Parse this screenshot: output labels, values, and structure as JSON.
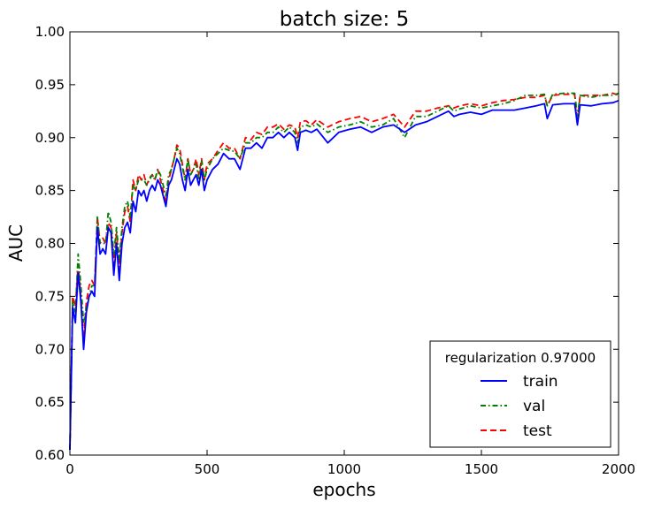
{
  "chart_data": {
    "type": "line",
    "title": "batch size: 5",
    "xlabel": "epochs",
    "ylabel": "AUC",
    "xlim": [
      0,
      2000
    ],
    "ylim": [
      0.6,
      1.0
    ],
    "xticks": [
      0,
      500,
      1000,
      1500,
      2000
    ],
    "xtick_labels": [
      "0",
      "500",
      "1000",
      "1500",
      "2000"
    ],
    "yticks": [
      0.6,
      0.65,
      0.7,
      0.75,
      0.8,
      0.85,
      0.9,
      0.95,
      1.0
    ],
    "ytick_labels": [
      "0.60",
      "0.65",
      "0.70",
      "0.75",
      "0.80",
      "0.85",
      "0.90",
      "0.95",
      "1.00"
    ],
    "grid": false,
    "legend": {
      "title": "regularization 0.97000",
      "position": "lower-right"
    },
    "series": [
      {
        "name": "train",
        "color": "#0000ff",
        "style": "solid",
        "x": [
          0,
          10,
          20,
          30,
          40,
          50,
          60,
          70,
          80,
          90,
          100,
          110,
          120,
          130,
          140,
          150,
          160,
          170,
          180,
          190,
          200,
          210,
          220,
          230,
          240,
          250,
          260,
          270,
          280,
          290,
          300,
          310,
          320,
          330,
          340,
          350,
          360,
          370,
          380,
          390,
          400,
          410,
          420,
          430,
          440,
          450,
          460,
          470,
          480,
          490,
          500,
          520,
          540,
          560,
          580,
          600,
          620,
          640,
          660,
          680,
          700,
          720,
          740,
          760,
          780,
          800,
          820,
          830,
          840,
          860,
          880,
          900,
          940,
          980,
          1020,
          1060,
          1100,
          1140,
          1180,
          1220,
          1260,
          1300,
          1340,
          1380,
          1400,
          1420,
          1460,
          1500,
          1540,
          1580,
          1620,
          1660,
          1700,
          1730,
          1740,
          1760,
          1800,
          1840,
          1850,
          1860,
          1900,
          1940,
          1980,
          2000
        ],
        "y": [
          0.605,
          0.74,
          0.725,
          0.772,
          0.745,
          0.7,
          0.735,
          0.75,
          0.755,
          0.75,
          0.815,
          0.79,
          0.795,
          0.79,
          0.815,
          0.81,
          0.77,
          0.8,
          0.765,
          0.8,
          0.815,
          0.82,
          0.81,
          0.84,
          0.83,
          0.85,
          0.845,
          0.85,
          0.84,
          0.85,
          0.855,
          0.85,
          0.86,
          0.855,
          0.845,
          0.835,
          0.855,
          0.86,
          0.87,
          0.88,
          0.875,
          0.86,
          0.85,
          0.87,
          0.855,
          0.86,
          0.865,
          0.855,
          0.87,
          0.85,
          0.86,
          0.87,
          0.875,
          0.885,
          0.88,
          0.88,
          0.87,
          0.89,
          0.89,
          0.895,
          0.89,
          0.9,
          0.9,
          0.905,
          0.9,
          0.905,
          0.9,
          0.888,
          0.905,
          0.907,
          0.905,
          0.908,
          0.895,
          0.905,
          0.908,
          0.91,
          0.905,
          0.91,
          0.912,
          0.905,
          0.912,
          0.915,
          0.92,
          0.925,
          0.92,
          0.922,
          0.924,
          0.922,
          0.926,
          0.926,
          0.926,
          0.928,
          0.93,
          0.932,
          0.918,
          0.931,
          0.932,
          0.932,
          0.912,
          0.931,
          0.93,
          0.932,
          0.933,
          0.935
        ]
      },
      {
        "name": "val",
        "color": "#008000",
        "style": "dashdot",
        "x": [
          0,
          10,
          20,
          30,
          40,
          50,
          60,
          70,
          80,
          90,
          100,
          110,
          120,
          130,
          140,
          150,
          160,
          170,
          180,
          190,
          200,
          210,
          220,
          230,
          240,
          250,
          260,
          270,
          280,
          290,
          300,
          310,
          320,
          330,
          340,
          350,
          360,
          370,
          380,
          390,
          400,
          410,
          420,
          430,
          440,
          450,
          460,
          470,
          480,
          490,
          500,
          520,
          540,
          560,
          580,
          600,
          620,
          640,
          660,
          680,
          700,
          720,
          740,
          760,
          780,
          800,
          820,
          830,
          840,
          860,
          880,
          900,
          940,
          980,
          1020,
          1060,
          1100,
          1140,
          1180,
          1220,
          1260,
          1300,
          1340,
          1380,
          1400,
          1420,
          1460,
          1500,
          1540,
          1580,
          1620,
          1660,
          1700,
          1730,
          1740,
          1760,
          1800,
          1840,
          1850,
          1860,
          1900,
          1940,
          1980,
          2000
        ],
        "y": [
          0.605,
          0.745,
          0.735,
          0.79,
          0.76,
          0.725,
          0.74,
          0.75,
          0.76,
          0.76,
          0.825,
          0.8,
          0.8,
          0.8,
          0.83,
          0.82,
          0.79,
          0.815,
          0.785,
          0.815,
          0.835,
          0.84,
          0.825,
          0.855,
          0.85,
          0.86,
          0.86,
          0.86,
          0.855,
          0.86,
          0.865,
          0.86,
          0.87,
          0.865,
          0.855,
          0.845,
          0.865,
          0.87,
          0.88,
          0.89,
          0.885,
          0.872,
          0.86,
          0.88,
          0.865,
          0.87,
          0.875,
          0.86,
          0.878,
          0.86,
          0.87,
          0.88,
          0.885,
          0.89,
          0.888,
          0.887,
          0.88,
          0.895,
          0.895,
          0.9,
          0.9,
          0.905,
          0.905,
          0.91,
          0.905,
          0.91,
          0.905,
          0.895,
          0.91,
          0.912,
          0.91,
          0.913,
          0.905,
          0.91,
          0.912,
          0.915,
          0.91,
          0.912,
          0.918,
          0.9,
          0.92,
          0.92,
          0.925,
          0.93,
          0.925,
          0.927,
          0.93,
          0.928,
          0.93,
          0.932,
          0.935,
          0.94,
          0.94,
          0.941,
          0.93,
          0.941,
          0.942,
          0.942,
          0.92,
          0.94,
          0.938,
          0.94,
          0.94,
          0.942
        ]
      },
      {
        "name": "test",
        "color": "#ff0000",
        "style": "dashed",
        "x": [
          0,
          10,
          20,
          30,
          40,
          50,
          60,
          70,
          80,
          90,
          100,
          110,
          120,
          130,
          140,
          150,
          160,
          170,
          180,
          190,
          200,
          210,
          220,
          230,
          240,
          250,
          260,
          270,
          280,
          290,
          300,
          310,
          320,
          330,
          340,
          350,
          360,
          370,
          380,
          390,
          400,
          410,
          420,
          430,
          440,
          450,
          460,
          470,
          480,
          490,
          500,
          520,
          540,
          560,
          580,
          600,
          620,
          640,
          660,
          680,
          700,
          720,
          740,
          760,
          780,
          800,
          820,
          830,
          840,
          860,
          880,
          900,
          940,
          980,
          1020,
          1060,
          1100,
          1140,
          1180,
          1220,
          1260,
          1300,
          1340,
          1380,
          1400,
          1420,
          1460,
          1500,
          1540,
          1580,
          1620,
          1660,
          1700,
          1730,
          1740,
          1760,
          1800,
          1840,
          1850,
          1860,
          1900,
          1940,
          1980,
          2000
        ],
        "y": [
          0.605,
          0.75,
          0.74,
          0.78,
          0.75,
          0.71,
          0.745,
          0.76,
          0.765,
          0.76,
          0.825,
          0.8,
          0.805,
          0.8,
          0.82,
          0.815,
          0.78,
          0.81,
          0.775,
          0.81,
          0.83,
          0.835,
          0.82,
          0.86,
          0.85,
          0.865,
          0.86,
          0.865,
          0.855,
          0.862,
          0.865,
          0.86,
          0.87,
          0.86,
          0.85,
          0.84,
          0.86,
          0.87,
          0.88,
          0.893,
          0.89,
          0.875,
          0.86,
          0.88,
          0.865,
          0.87,
          0.88,
          0.865,
          0.88,
          0.86,
          0.875,
          0.88,
          0.888,
          0.895,
          0.89,
          0.89,
          0.88,
          0.9,
          0.898,
          0.905,
          0.903,
          0.91,
          0.91,
          0.913,
          0.908,
          0.912,
          0.91,
          0.9,
          0.915,
          0.916,
          0.912,
          0.917,
          0.91,
          0.915,
          0.918,
          0.92,
          0.915,
          0.918,
          0.922,
          0.91,
          0.925,
          0.925,
          0.928,
          0.93,
          0.928,
          0.93,
          0.932,
          0.93,
          0.933,
          0.935,
          0.936,
          0.938,
          0.938,
          0.94,
          0.93,
          0.94,
          0.941,
          0.941,
          0.915,
          0.94,
          0.94,
          0.94,
          0.942,
          0.94
        ]
      }
    ]
  }
}
